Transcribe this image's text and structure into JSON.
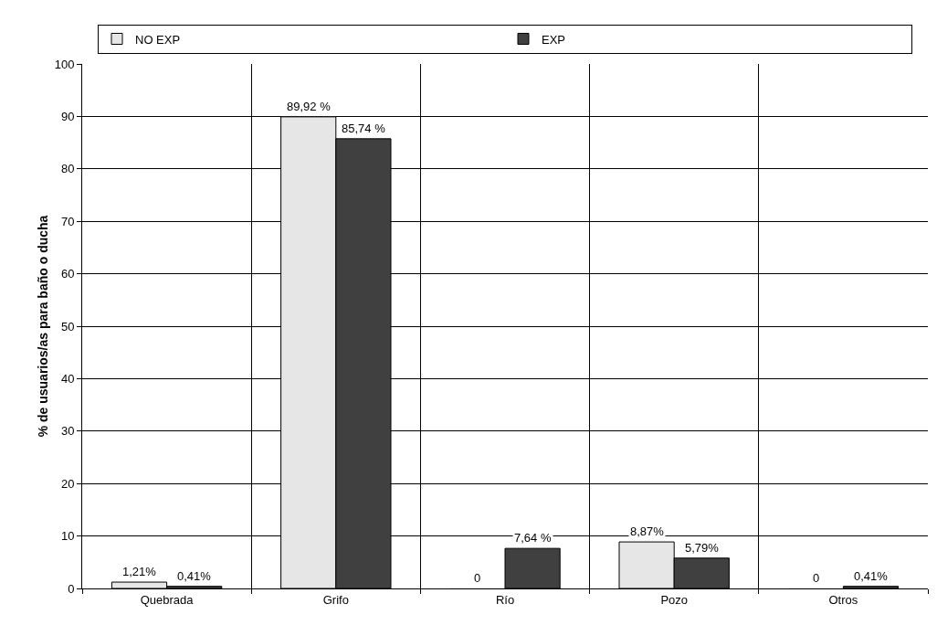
{
  "chart_data": {
    "type": "bar",
    "ylabel": "% de usuarios/as para baño o ducha",
    "categories": [
      "Quebrada",
      "Grifo",
      "Río",
      "Pozo",
      "Otros"
    ],
    "series": [
      {
        "name": "NO EXP",
        "color": "#e6e6e6",
        "values": [
          1.21,
          89.92,
          0,
          8.87,
          0
        ],
        "value_labels": [
          "1,21%",
          "89,92 %",
          "0",
          "8,87%",
          "0"
        ]
      },
      {
        "name": "EXP",
        "color": "#404040",
        "values": [
          0.41,
          85.74,
          7.64,
          5.79,
          0.41
        ],
        "value_labels": [
          "0,41%",
          "85,74 %",
          "7,64 %",
          "5,79%",
          "0,41%"
        ]
      }
    ],
    "ylim": [
      0,
      100
    ],
    "yticks": [
      0,
      10,
      20,
      30,
      40,
      50,
      60,
      70,
      80,
      90,
      100
    ],
    "grid": true,
    "legend": "top"
  }
}
